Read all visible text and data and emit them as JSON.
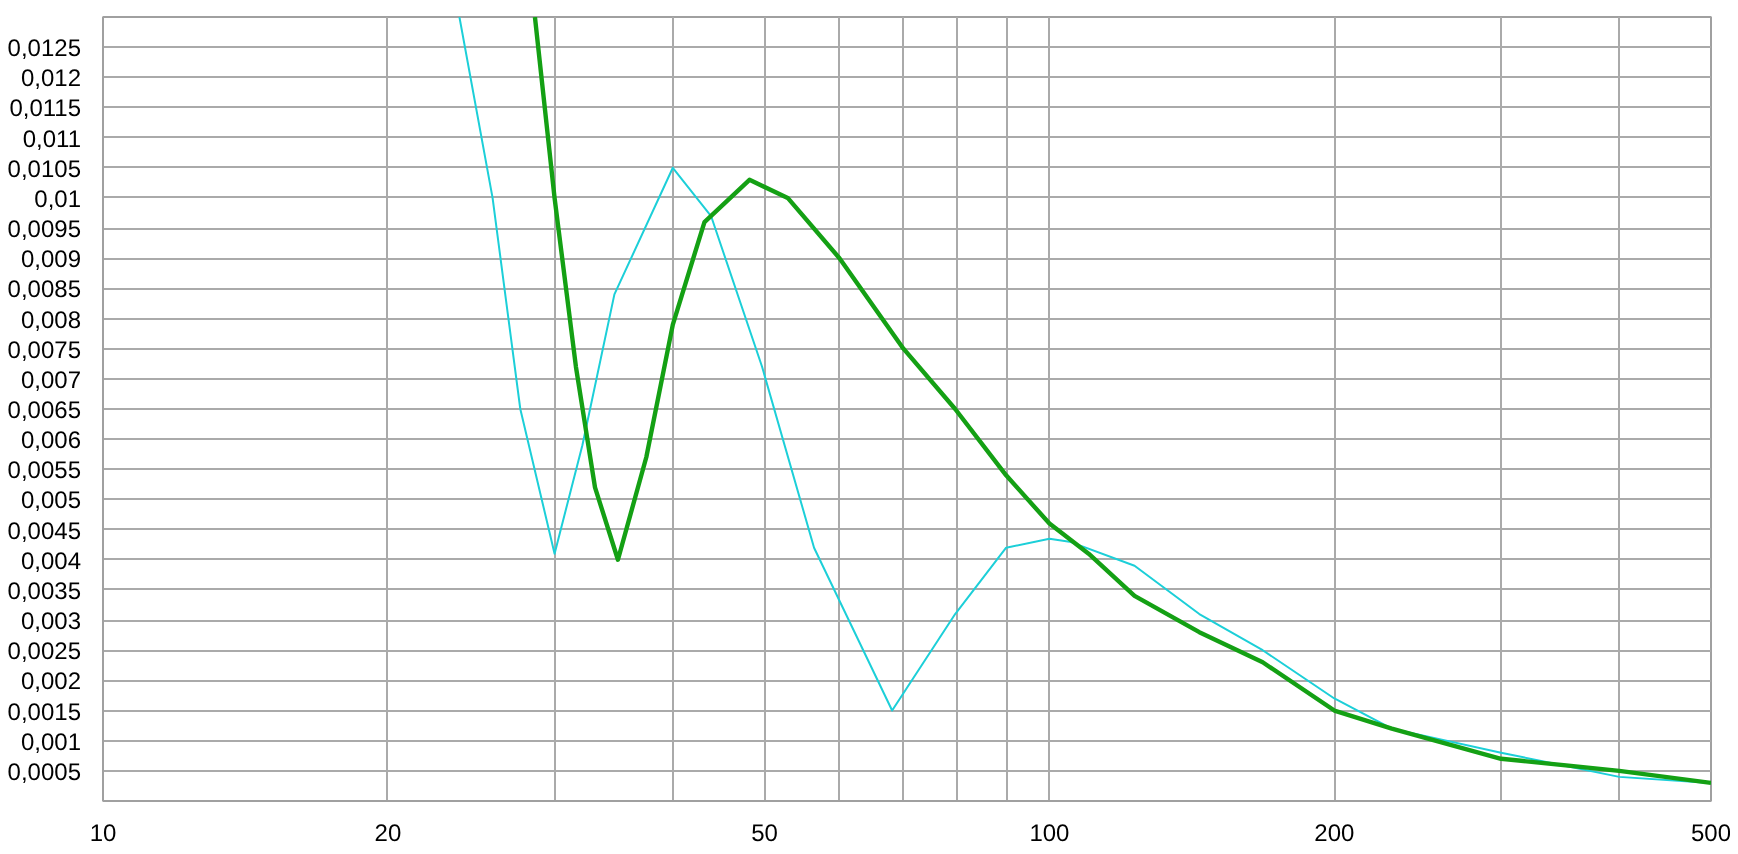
{
  "chart_data": {
    "type": "line",
    "log": "x",
    "grid": true,
    "marker": "none",
    "line_style": "solid",
    "xlim": [
      10,
      500
    ],
    "ylim": [
      0,
      0.013
    ],
    "xticks": [
      10,
      20,
      {
        "value": 30,
        "label": null
      },
      {
        "value": 40,
        "label": null
      },
      50,
      {
        "value": 60,
        "label": null
      },
      {
        "value": 70,
        "label": null
      },
      {
        "value": 80,
        "label": null
      },
      {
        "value": 90,
        "label": null
      },
      100,
      200,
      {
        "value": 300,
        "label": null
      },
      {
        "value": 400,
        "label": null
      },
      500
    ],
    "yticks": [
      {
        "value": 0.0005,
        "label": "0,0005"
      },
      {
        "value": 0.001,
        "label": "0,001"
      },
      {
        "value": 0.0015,
        "label": "0,0015"
      },
      {
        "value": 0.002,
        "label": "0,002"
      },
      {
        "value": 0.0025,
        "label": "0,0025"
      },
      {
        "value": 0.003,
        "label": "0,003"
      },
      {
        "value": 0.0035,
        "label": "0,0035"
      },
      {
        "value": 0.004,
        "label": "0,004"
      },
      {
        "value": 0.0045,
        "label": "0,0045"
      },
      {
        "value": 0.005,
        "label": "0,005"
      },
      {
        "value": 0.0055,
        "label": "0,0055"
      },
      {
        "value": 0.006,
        "label": "0,006"
      },
      {
        "value": 0.0065,
        "label": "0,0065"
      },
      {
        "value": 0.007,
        "label": "0,007"
      },
      {
        "value": 0.0075,
        "label": "0,0075"
      },
      {
        "value": 0.008,
        "label": "0,008"
      },
      {
        "value": 0.0085,
        "label": "0,0085"
      },
      {
        "value": 0.009,
        "label": "0,009"
      },
      {
        "value": 0.0095,
        "label": "0,0095"
      },
      {
        "value": 0.01,
        "label": "0,01"
      },
      {
        "value": 0.0105,
        "label": "0,0105"
      },
      {
        "value": 0.011,
        "label": "0,011"
      },
      {
        "value": 0.0115,
        "label": "0,0115"
      },
      {
        "value": 0.012,
        "label": "0,012"
      },
      {
        "value": 0.0125,
        "label": "0,0125"
      }
    ],
    "series": [
      {
        "color": "#1ccfd8",
        "x": [
          23.8,
          25.8,
          27.6,
          30,
          32.1,
          34.7,
          40,
          43.9,
          49.7,
          56.4,
          68.2,
          79.5,
          90,
          100,
          105,
          123,
          144,
          168,
          200,
          230,
          300,
          400,
          500
        ],
        "values": [
          0.013,
          0.01,
          0.0065,
          0.0041,
          0.0059,
          0.0084,
          0.0105,
          0.0097,
          0.0072,
          0.0042,
          0.0015,
          0.0031,
          0.0042,
          0.00435,
          0.0043,
          0.0039,
          0.0031,
          0.0025,
          0.0017,
          0.0012,
          0.0008,
          0.0004,
          0.0003
        ]
      },
      {
        "color": "#14a014",
        "x": [
          28.6,
          30,
          31.6,
          33.1,
          35,
          37.5,
          40,
          43.2,
          48.2,
          52.9,
          60,
          70.1,
          79.5,
          90,
          100,
          110,
          123,
          144,
          168,
          200,
          230,
          300,
          400,
          500
        ],
        "values": [
          0.013,
          0.01,
          0.0072,
          0.0052,
          0.004,
          0.0057,
          0.0079,
          0.0096,
          0.0103,
          0.01,
          0.009,
          0.0075,
          0.0065,
          0.0054,
          0.0046,
          0.0041,
          0.0034,
          0.0028,
          0.0023,
          0.0015,
          0.0012,
          0.0007,
          0.0005,
          0.0003
        ]
      }
    ]
  }
}
